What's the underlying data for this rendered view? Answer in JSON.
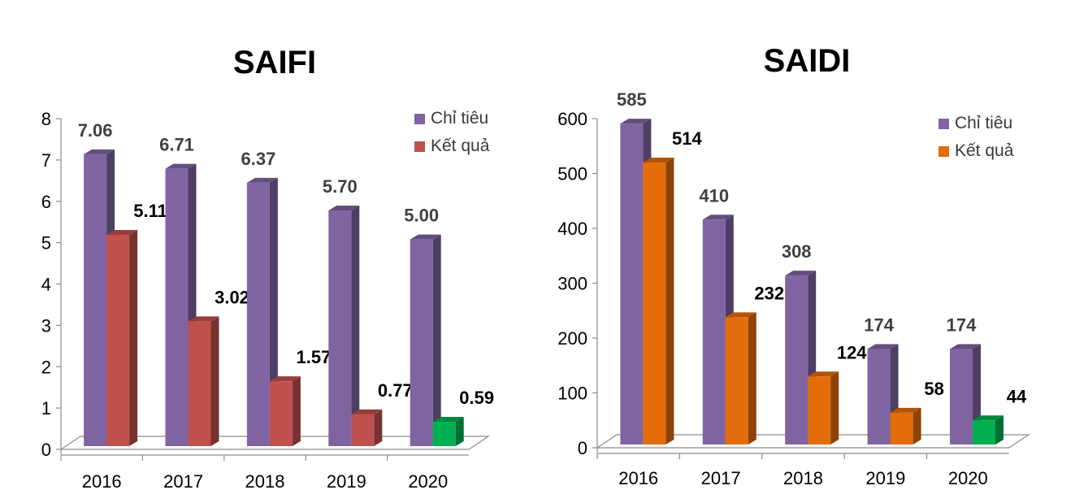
{
  "chart_data": [
    {
      "type": "bar",
      "title": "SAIFI",
      "categories": [
        "2016",
        "2017",
        "2018",
        "2019",
        "2020"
      ],
      "ylim": [
        0,
        8
      ],
      "yticks": [
        "0",
        "1",
        "2",
        "3",
        "4",
        "5",
        "6",
        "7",
        "8"
      ],
      "legend": "top-right",
      "series": [
        {
          "name": "Chỉ tiêu",
          "values": [
            7.06,
            6.71,
            6.37,
            5.7,
            5.0
          ],
          "labels": [
            "7.06",
            "6.71",
            "6.37",
            "5.70",
            "5.00"
          ],
          "color": "#8064A2"
        },
        {
          "name": "Kết quả",
          "values": [
            5.11,
            3.02,
            1.57,
            0.77,
            0.59
          ],
          "labels": [
            "5.11",
            "3.02",
            "1.57",
            "0.77",
            "0.59"
          ],
          "color": "#C0504D",
          "point_colors": [
            "#C0504D",
            "#C0504D",
            "#C0504D",
            "#C0504D",
            "#00B050"
          ]
        }
      ]
    },
    {
      "type": "bar",
      "title": "SAIDI",
      "categories": [
        "2016",
        "2017",
        "2018",
        "2019",
        "2020"
      ],
      "ylim": [
        0,
        600
      ],
      "yticks": [
        "0",
        "100",
        "200",
        "300",
        "400",
        "500",
        "600"
      ],
      "legend": "top-right",
      "series": [
        {
          "name": "Chỉ tiêu",
          "values": [
            585,
            410,
            308,
            174,
            174
          ],
          "labels": [
            "585",
            "410",
            "308",
            "174",
            "174"
          ],
          "color": "#8064A2"
        },
        {
          "name": "Kết quả",
          "values": [
            514,
            232,
            124,
            58,
            44
          ],
          "labels": [
            "514",
            "232",
            "124",
            "58",
            "44"
          ],
          "color": "#E46C0A",
          "point_colors": [
            "#E46C0A",
            "#E46C0A",
            "#E46C0A",
            "#E46C0A",
            "#00B050"
          ]
        }
      ]
    }
  ]
}
